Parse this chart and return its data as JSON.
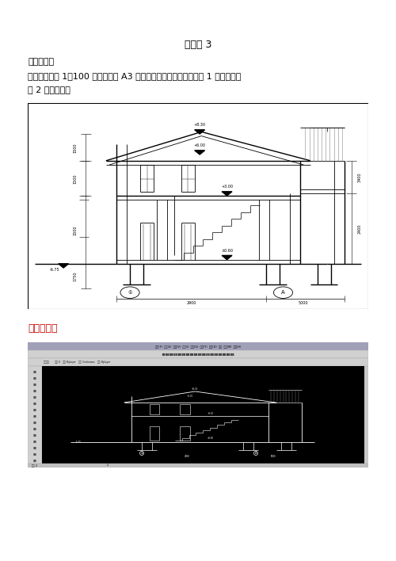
{
  "title": "大作业 3",
  "subtitle1": "绘制剖面图",
  "subtitle2": "绘图要求：按 1：100 的比例画在 A3 图幅内。（尺寸可以参考作业 1 平面图和作",
  "subtitle3": "业 2 的立面图）",
  "ref_label": "参考答案：",
  "bg_color": "#ffffff",
  "text_color": "#000000",
  "ref_color": "#cc0000"
}
